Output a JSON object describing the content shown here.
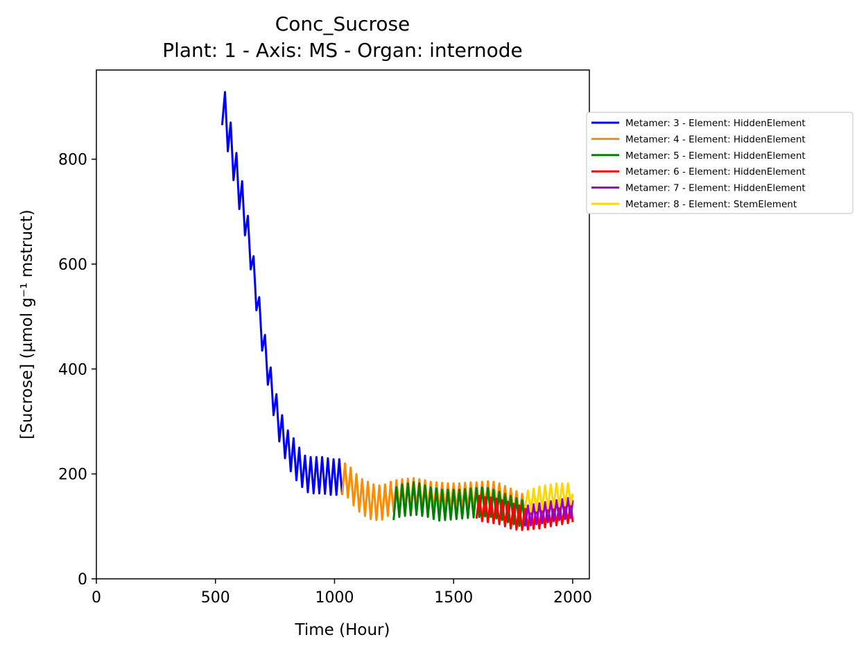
{
  "chart_data": {
    "type": "line",
    "title": "Conc_Sucrose",
    "subtitle": "Plant: 1 - Axis: MS - Organ: internode",
    "xlabel": "Time (Hour)",
    "ylabel": "[Sucrose] (µmol g⁻¹ mstruct)",
    "xlim": [
      0,
      2070
    ],
    "ylim": [
      0,
      970
    ],
    "xticks": [
      0,
      500,
      1000,
      1500,
      2000
    ],
    "yticks": [
      0,
      200,
      400,
      600,
      800
    ],
    "grid": false,
    "legend_position": "outside right, upper",
    "series": [
      {
        "name": "Metamer: 3 - Element: HiddenElement",
        "color": "#0000ff",
        "x": [
          528,
          540,
          552,
          564,
          576,
          588,
          600,
          612,
          624,
          636,
          648,
          660,
          672,
          684,
          696,
          708,
          720,
          732,
          744,
          756,
          768,
          780,
          792,
          804,
          816,
          828,
          840,
          852,
          864,
          876,
          888,
          900,
          912,
          924,
          936,
          948,
          960,
          972,
          984,
          996,
          1008,
          1020,
          1032
        ],
        "y": [
          865,
          928,
          815,
          870,
          760,
          812,
          705,
          758,
          655,
          692,
          590,
          615,
          512,
          537,
          435,
          465,
          370,
          403,
          312,
          352,
          262,
          312,
          230,
          283,
          205,
          268,
          188,
          250,
          175,
          235,
          165,
          232,
          163,
          232,
          163,
          232,
          162,
          230,
          160,
          228,
          160,
          228,
          160
        ]
      },
      {
        "name": "Metamer: 4 - Element: HiddenElement",
        "color": "#ff8c00",
        "x": [
          1032,
          1044,
          1056,
          1068,
          1080,
          1092,
          1104,
          1116,
          1128,
          1140,
          1152,
          1164,
          1176,
          1188,
          1200,
          1212,
          1224,
          1236,
          1248,
          1260,
          1272,
          1284,
          1296,
          1308,
          1320,
          1332,
          1344,
          1356,
          1368,
          1380,
          1392,
          1404,
          1416,
          1428,
          1440,
          1452,
          1464,
          1476,
          1488,
          1500,
          1512,
          1524,
          1536,
          1548,
          1560,
          1572,
          1584,
          1596,
          1608,
          1620,
          1632,
          1644,
          1656,
          1668,
          1680,
          1692,
          1704,
          1716,
          1728,
          1740,
          1752,
          1764,
          1776,
          1788,
          1800
        ],
        "y": [
          160,
          220,
          155,
          212,
          140,
          200,
          128,
          190,
          120,
          185,
          114,
          180,
          112,
          178,
          113,
          180,
          120,
          185,
          128,
          188,
          130,
          190,
          132,
          191,
          134,
          192,
          135,
          190,
          133,
          188,
          132,
          185,
          130,
          184,
          130,
          183,
          131,
          182,
          131,
          182,
          132,
          182,
          132,
          183,
          133,
          184,
          133,
          184,
          133,
          185,
          134,
          186,
          134,
          185,
          133,
          182,
          130,
          177,
          126,
          172,
          120,
          167,
          116,
          162,
          115
        ]
      },
      {
        "name": "Metamer: 5 - Element: HiddenElement",
        "color": "#008000",
        "x": [
          1248,
          1260,
          1272,
          1284,
          1296,
          1308,
          1320,
          1332,
          1344,
          1356,
          1368,
          1380,
          1392,
          1404,
          1416,
          1428,
          1440,
          1452,
          1464,
          1476,
          1488,
          1500,
          1512,
          1524,
          1536,
          1548,
          1560,
          1572,
          1584,
          1596,
          1608,
          1620,
          1632,
          1644,
          1656,
          1668,
          1680,
          1692,
          1704,
          1716,
          1728,
          1740,
          1752,
          1764,
          1776,
          1788,
          1800
        ],
        "y": [
          112,
          175,
          118,
          180,
          120,
          182,
          121,
          184,
          122,
          182,
          120,
          178,
          118,
          174,
          114,
          172,
          111,
          170,
          112,
          170,
          113,
          170,
          114,
          170,
          115,
          171,
          116,
          172,
          117,
          173,
          118,
          174,
          119,
          173,
          118,
          170,
          115,
          166,
          112,
          162,
          108,
          158,
          104,
          154,
          101,
          150,
          100
        ]
      },
      {
        "name": "Metamer: 6 - Element: HiddenElement",
        "color": "#ff0000",
        "x": [
          1596,
          1608,
          1620,
          1632,
          1644,
          1656,
          1668,
          1680,
          1692,
          1704,
          1716,
          1728,
          1740,
          1752,
          1764,
          1776,
          1788,
          1800,
          1812,
          1824,
          1836,
          1848,
          1860,
          1872,
          1884,
          1896,
          1908,
          1920,
          1932,
          1944,
          1956,
          1968,
          1980,
          1992,
          2000
        ],
        "y": [
          115,
          158,
          110,
          156,
          108,
          155,
          106,
          153,
          104,
          150,
          100,
          147,
          96,
          143,
          94,
          140,
          93,
          138,
          94,
          139,
          95,
          140,
          96,
          141,
          98,
          142,
          100,
          143,
          102,
          144,
          104,
          145,
          106,
          146,
          108
        ]
      },
      {
        "name": "Metamer: 7 - Element: HiddenElement",
        "color": "#9400d3",
        "x": [
          1800,
          1812,
          1824,
          1836,
          1848,
          1860,
          1872,
          1884,
          1896,
          1908,
          1920,
          1932,
          1944,
          1956,
          1968,
          1980,
          1992,
          2000
        ],
        "y": [
          100,
          140,
          102,
          142,
          104,
          144,
          106,
          146,
          108,
          148,
          110,
          150,
          112,
          152,
          114,
          154,
          116,
          150
        ]
      },
      {
        "name": "Metamer: 8 - Element: StemElement",
        "color": "#ffd700",
        "x": [
          1800,
          1812,
          1824,
          1836,
          1848,
          1860,
          1872,
          1884,
          1896,
          1908,
          1920,
          1932,
          1944,
          1956,
          1968,
          1980,
          1992,
          2000
        ],
        "y": [
          135,
          168,
          128,
          172,
          130,
          176,
          132,
          178,
          134,
          180,
          136,
          182,
          138,
          182,
          140,
          182,
          142,
          162
        ]
      }
    ]
  }
}
